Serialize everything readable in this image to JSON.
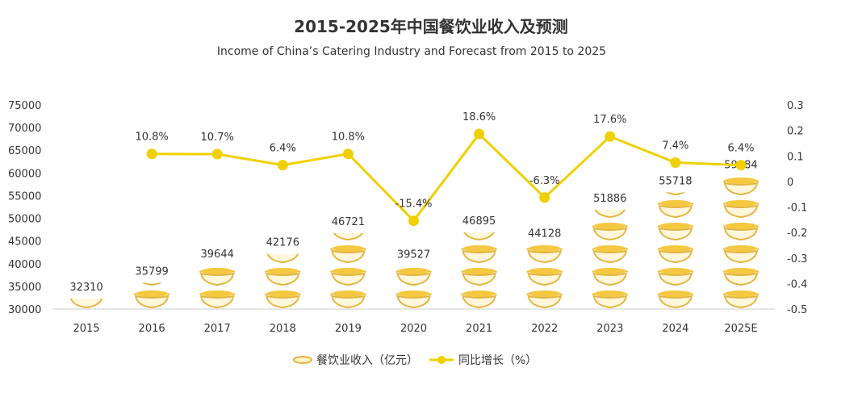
{
  "chart_data": {
    "type": "bar+line",
    "title": "2015-2025年中国餐饮业收入及预测",
    "subtitle": "Income of China’s Catering Industry and Forecast from 2015 to 2025",
    "categories": [
      "2015",
      "2016",
      "2017",
      "2018",
      "2019",
      "2020",
      "2021",
      "2022",
      "2023",
      "2024",
      "2025E"
    ],
    "series": [
      {
        "name": "餐饮业收入（亿元）",
        "type": "pictograph-bar",
        "axis": "left",
        "values": [
          32310,
          35799,
          39644,
          42176,
          46721,
          39527,
          46895,
          44128,
          51886,
          55718,
          59284
        ],
        "labels": [
          "32310",
          "35799",
          "39644",
          "42176",
          "46721",
          "39527",
          "46895",
          "44128",
          "51886",
          "55718",
          "59284"
        ]
      },
      {
        "name": "同比增长（%）",
        "type": "line",
        "axis": "right",
        "values": [
          null,
          0.108,
          0.107,
          0.064,
          0.108,
          -0.154,
          0.186,
          -0.063,
          0.176,
          0.074,
          0.064
        ],
        "labels": [
          "",
          "10.8%",
          "10.7%",
          "6.4%",
          "10.8%",
          "-15.4%",
          "18.6%",
          "-6.3%",
          "17.6%",
          "7.4%",
          "6.4%"
        ]
      }
    ],
    "y_left": {
      "range": [
        30000,
        75000
      ],
      "ticks": [
        "30000",
        "35000",
        "40000",
        "45000",
        "50000",
        "55000",
        "60000",
        "65000",
        "70000",
        "75000"
      ]
    },
    "y_right": {
      "range": [
        -0.5,
        0.3
      ],
      "ticks": [
        "-0.5",
        "-0.4",
        "-0.3",
        "-0.2",
        "-0.1",
        "0",
        "0.1",
        "0.2",
        "0.3"
      ]
    },
    "grid": false,
    "legend_placement": "bottom",
    "colors": {
      "bar": "#f2c230",
      "line": "#f0d000",
      "text": "#333333"
    }
  }
}
